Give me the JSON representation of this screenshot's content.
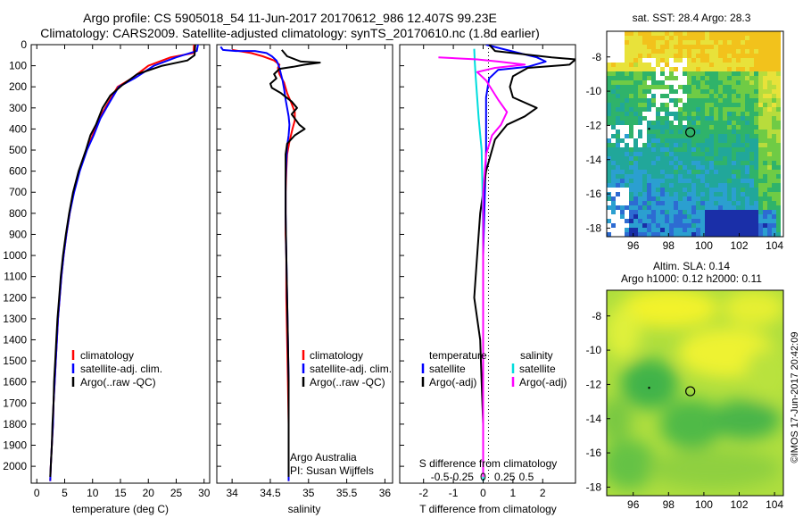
{
  "title_line1": "Argo profile: CS 5905018_54 11-Jun-2017 20170612_986 12.407S 99.23E",
  "title_line2": "Climatology: CARS2009. Satellite-adjusted climatology: synTS_20170610.nc (1.8d earlier)",
  "chart_data": [
    {
      "type": "line",
      "panel": "temperature",
      "xlabel": "temperature (deg C)",
      "xlim": [
        -1,
        31
      ],
      "xticks": [
        "0",
        "5",
        "10",
        "15",
        "20",
        "25",
        "30"
      ],
      "ylim": [
        2080,
        0
      ],
      "yticks": [
        "0",
        "100",
        "200",
        "300",
        "400",
        "500",
        "600",
        "700",
        "800",
        "900",
        "1000",
        "1100",
        "1200",
        "1300",
        "1400",
        "1500",
        "1600",
        "1700",
        "1800",
        "1900",
        "2000"
      ],
      "legend": [
        "climatology",
        "satellite-adj. clim.",
        "Argo(..raw -QC)"
      ],
      "series": [
        {
          "name": "climatology",
          "color": "#ff0000",
          "points": [
            [
              28.2,
              0
            ],
            [
              28.1,
              40
            ],
            [
              24,
              60
            ],
            [
              20,
              100
            ],
            [
              17,
              160
            ],
            [
              14.5,
              200
            ],
            [
              12.7,
              280
            ],
            [
              11.2,
              350
            ],
            [
              10,
              430
            ],
            [
              8.9,
              500
            ],
            [
              7.6,
              600
            ],
            [
              6.6,
              700
            ],
            [
              5.9,
              800
            ],
            [
              5.3,
              900
            ],
            [
              4.8,
              1000
            ],
            [
              4.4,
              1100
            ],
            [
              4.1,
              1200
            ],
            [
              3.8,
              1300
            ],
            [
              3.6,
              1400
            ],
            [
              3.4,
              1500
            ],
            [
              3.2,
              1600
            ],
            [
              3.0,
              1700
            ],
            [
              2.9,
              1800
            ],
            [
              2.7,
              1900
            ],
            [
              2.5,
              2000
            ],
            [
              2.4,
              2070
            ]
          ]
        },
        {
          "name": "satellite-adj. clim.",
          "color": "#0000ff",
          "points": [
            [
              28.9,
              0
            ],
            [
              28.7,
              30
            ],
            [
              25,
              60
            ],
            [
              21,
              100
            ],
            [
              17.5,
              160
            ],
            [
              14.7,
              200
            ],
            [
              12.9,
              280
            ],
            [
              11.4,
              350
            ],
            [
              10.2,
              430
            ],
            [
              9.0,
              500
            ],
            [
              7.7,
              600
            ],
            [
              6.7,
              700
            ],
            [
              5.9,
              800
            ],
            [
              5.3,
              900
            ],
            [
              4.8,
              1000
            ],
            [
              4.4,
              1100
            ],
            [
              4.1,
              1200
            ],
            [
              3.8,
              1300
            ],
            [
              3.6,
              1400
            ],
            [
              3.4,
              1500
            ],
            [
              3.2,
              1600
            ],
            [
              3.0,
              1700
            ],
            [
              2.9,
              1800
            ],
            [
              2.7,
              1900
            ],
            [
              2.5,
              2000
            ],
            [
              2.4,
              2070
            ]
          ]
        },
        {
          "name": "Argo(..raw -QC)",
          "color": "#000000",
          "points": [
            [
              28.4,
              0
            ],
            [
              28.3,
              50
            ],
            [
              27,
              75
            ],
            [
              22.5,
              100
            ],
            [
              18,
              140
            ],
            [
              15.4,
              190
            ],
            [
              13.2,
              240
            ],
            [
              11.8,
              300
            ],
            [
              10.6,
              380
            ],
            [
              9.6,
              430
            ],
            [
              8.8,
              500
            ],
            [
              7.5,
              600
            ],
            [
              6.5,
              700
            ],
            [
              5.8,
              800
            ],
            [
              5.2,
              900
            ],
            [
              4.7,
              1000
            ],
            [
              4.3,
              1100
            ],
            [
              4.0,
              1200
            ],
            [
              3.7,
              1300
            ],
            [
              3.5,
              1400
            ],
            [
              3.3,
              1500
            ],
            [
              3.1,
              1600
            ],
            [
              3.0,
              1700
            ],
            [
              2.8,
              1800
            ],
            [
              2.7,
              1900
            ],
            [
              2.5,
              2000
            ],
            [
              2.4,
              2050
            ]
          ]
        }
      ]
    },
    {
      "type": "line",
      "panel": "salinity",
      "xlabel": "salinity",
      "xlim": [
        33.8,
        36.1
      ],
      "xticks": [
        "34",
        "34.5",
        "35",
        "35.5",
        "36"
      ],
      "legend": [
        "climatology",
        "satellite-adj. clim.",
        "Argo(..raw -QC)"
      ],
      "annotation": [
        "Argo Australia",
        "PI: Susan Wijffels"
      ],
      "series": [
        {
          "name": "climatology",
          "color": "#ff0000",
          "points": [
            [
              34.0,
              25
            ],
            [
              34.25,
              40
            ],
            [
              34.4,
              55
            ],
            [
              34.55,
              75
            ],
            [
              34.62,
              95
            ],
            [
              34.6,
              110
            ],
            [
              34.62,
              140
            ],
            [
              34.68,
              180
            ],
            [
              34.72,
              230
            ],
            [
              34.78,
              280
            ],
            [
              34.82,
              320
            ],
            [
              34.82,
              360
            ],
            [
              34.79,
              400
            ],
            [
              34.75,
              460
            ],
            [
              34.72,
              520
            ],
            [
              34.71,
              600
            ],
            [
              34.7,
              700
            ],
            [
              34.7,
              800
            ],
            [
              34.7,
              900
            ],
            [
              34.71,
              1000
            ],
            [
              34.71,
              1200
            ],
            [
              34.72,
              1400
            ],
            [
              34.73,
              1600
            ],
            [
              34.74,
              1800
            ],
            [
              34.74,
              2000
            ],
            [
              34.74,
              2070
            ]
          ]
        },
        {
          "name": "satellite-adj. clim.",
          "color": "#0000ff",
          "points": [
            [
              33.85,
              10
            ],
            [
              33.88,
              25
            ],
            [
              34.05,
              30
            ],
            [
              34.3,
              30
            ],
            [
              34.45,
              40
            ],
            [
              34.52,
              55
            ],
            [
              34.58,
              75
            ],
            [
              34.6,
              90
            ],
            [
              34.62,
              110
            ],
            [
              34.64,
              140
            ],
            [
              34.66,
              170
            ],
            [
              34.68,
              210
            ],
            [
              34.7,
              260
            ],
            [
              34.72,
              300
            ],
            [
              34.74,
              340
            ],
            [
              34.75,
              380
            ],
            [
              34.74,
              430
            ],
            [
              34.72,
              480
            ],
            [
              34.71,
              550
            ],
            [
              34.7,
              650
            ],
            [
              34.7,
              800
            ],
            [
              34.71,
              1000
            ],
            [
              34.72,
              1200
            ],
            [
              34.73,
              1400
            ],
            [
              34.74,
              1600
            ],
            [
              34.74,
              1800
            ],
            [
              34.74,
              2070
            ]
          ]
        },
        {
          "name": "Argo(..raw -QC)",
          "color": "#000000",
          "points": [
            [
              34.65,
              25
            ],
            [
              34.72,
              55
            ],
            [
              34.9,
              80
            ],
            [
              35.15,
              85
            ],
            [
              34.95,
              95
            ],
            [
              34.8,
              105
            ],
            [
              34.62,
              115
            ],
            [
              34.55,
              140
            ],
            [
              34.58,
              160
            ],
            [
              34.5,
              185
            ],
            [
              34.52,
              205
            ],
            [
              34.64,
              230
            ],
            [
              34.78,
              270
            ],
            [
              34.85,
              300
            ],
            [
              34.78,
              330
            ],
            [
              34.88,
              380
            ],
            [
              34.95,
              400
            ],
            [
              34.82,
              430
            ],
            [
              34.72,
              470
            ],
            [
              34.7,
              520
            ],
            [
              34.7,
              600
            ],
            [
              34.7,
              800
            ],
            [
              34.71,
              1000
            ],
            [
              34.72,
              1200
            ],
            [
              34.73,
              1400
            ],
            [
              34.74,
              1600
            ],
            [
              34.74,
              1800
            ],
            [
              34.74,
              2050
            ]
          ]
        }
      ]
    },
    {
      "type": "line",
      "panel": "difference",
      "xlabel": "T difference from climatology",
      "top_axis_label": "S difference from climatology",
      "t_xlim": [
        -2.8,
        3.1
      ],
      "t_xticks": [
        "-2",
        "-1",
        "0",
        "1",
        "2"
      ],
      "s_xticks": [
        "-0.5",
        "-0.25",
        "0",
        "0.25",
        "0.5"
      ],
      "legend_temperature": [
        "temperature",
        "satellite",
        "Argo(-adj)"
      ],
      "legend_salinity": [
        "salinity",
        "satellite",
        "Argo(-adj)"
      ],
      "series": [
        {
          "name": "T satellite",
          "color": "#0000ff",
          "points": [
            [
              0.1,
              0
            ],
            [
              0.5,
              15
            ],
            [
              1.2,
              40
            ],
            [
              1.8,
              60
            ],
            [
              2.1,
              80
            ],
            [
              1.5,
              105
            ],
            [
              0.5,
              120
            ],
            [
              0.2,
              160
            ],
            [
              0.1,
              250
            ],
            [
              0.1,
              500
            ],
            [
              0.0,
              1000
            ],
            [
              0.0,
              2070
            ]
          ]
        },
        {
          "name": "T Argo(-adj)",
          "color": "#000000",
          "points": [
            [
              0.2,
              0
            ],
            [
              0.4,
              30
            ],
            [
              2.3,
              60
            ],
            [
              3.1,
              70
            ],
            [
              2.9,
              95
            ],
            [
              1.5,
              110
            ],
            [
              1.0,
              150
            ],
            [
              0.9,
              200
            ],
            [
              1.0,
              250
            ],
            [
              1.8,
              300
            ],
            [
              1.4,
              340
            ],
            [
              0.8,
              380
            ],
            [
              0.4,
              450
            ],
            [
              0.1,
              600
            ],
            [
              -0.1,
              800
            ],
            [
              -0.2,
              1000
            ],
            [
              -0.3,
              1200
            ],
            [
              -0.1,
              1400
            ],
            [
              -0.05,
              1600
            ],
            [
              0.0,
              1800
            ],
            [
              0.0,
              2050
            ]
          ]
        },
        {
          "name": "S satellite",
          "color": "#00dddd",
          "points": [
            [
              -0.3,
              20
            ],
            [
              -0.28,
              80
            ],
            [
              -0.25,
              150
            ],
            [
              -0.2,
              250
            ],
            [
              -0.15,
              350
            ],
            [
              -0.05,
              500
            ],
            [
              -0.02,
              700
            ],
            [
              0.0,
              1000
            ],
            [
              0.0,
              1500
            ],
            [
              0.0,
              2070
            ]
          ]
        },
        {
          "name": "S Argo(-adj)",
          "color": "#ff00ff",
          "points": [
            [
              -1.5,
              60
            ],
            [
              -0.2,
              70
            ],
            [
              0.5,
              80
            ],
            [
              1.4,
              95
            ],
            [
              0.4,
              110
            ],
            [
              -0.2,
              130
            ],
            [
              0.1,
              170
            ],
            [
              0.5,
              260
            ],
            [
              0.8,
              320
            ],
            [
              0.6,
              380
            ],
            [
              0.3,
              430
            ],
            [
              0.1,
              520
            ],
            [
              0.0,
              700
            ],
            [
              0.0,
              2050
            ]
          ]
        }
      ]
    }
  ],
  "maps": {
    "sst_title": "sat. SST: 28.4  Argo: 28.3",
    "sla_title_line1": "Altim. SLA: 0.14",
    "sla_title_line2": "Argo h1000: 0.12  h2000: 0.11",
    "xticks": [
      "96",
      "98",
      "100",
      "102",
      "104"
    ],
    "yticks": [
      "-8",
      "-10",
      "-12",
      "-14",
      "-16",
      "-18"
    ],
    "xlim": [
      94.5,
      104.5
    ],
    "ylim": [
      -18.5,
      -6.5
    ],
    "float_position": {
      "lon": 99.23,
      "lat": -12.4
    },
    "earlier_position": {
      "lon": 96.9,
      "lat": -12.2
    }
  },
  "footer_stamp": "©IMOS 17-Jun-2017 20:42:09"
}
